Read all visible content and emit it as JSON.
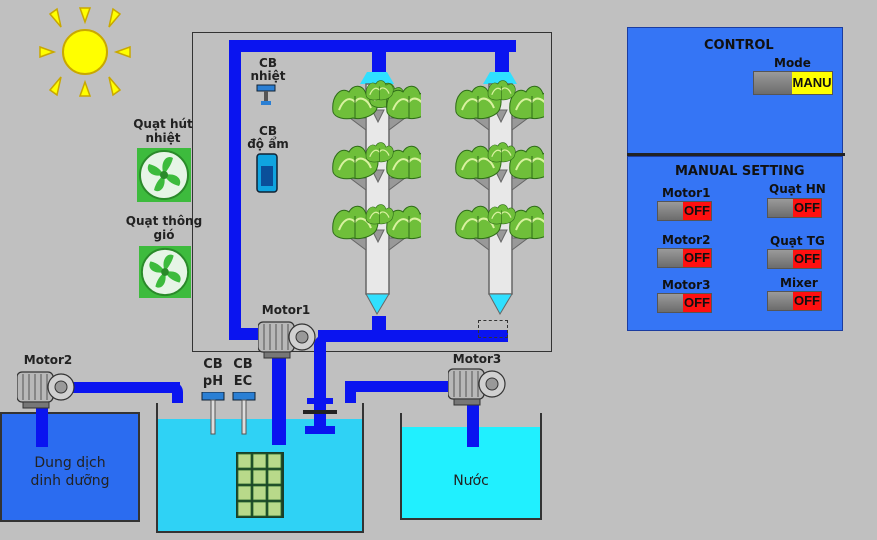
{
  "colors": {
    "background": "#c0c0c0",
    "pipe": "#0a14f0",
    "panel": "#3575f5",
    "off_state": "#ff1010",
    "manual_state": "#ffff00",
    "nutrient_tank": "#2b6cf0",
    "main_tank": "#2fd2f5",
    "water_tank": "#20f0ff",
    "fan": "#3dbb3d"
  },
  "sensors": {
    "temperature": "CB\nnhiệt",
    "humidity": "CB\nđộ ẩm",
    "ph": "CB\npH",
    "ec": "CB\nEC"
  },
  "fans": {
    "exhaust": "Quạt hút\nnhiệt",
    "ventilation": "Quạt thông\ngió"
  },
  "motors": {
    "motor1": "Motor1",
    "motor2": "Motor2",
    "motor3": "Motor3"
  },
  "tanks": {
    "nutrient": "Dung dịch\ndinh dưỡng",
    "water": "Nước"
  },
  "control": {
    "title": "CONTROL",
    "mode_label": "Mode",
    "mode_value": "MANU"
  },
  "manual": {
    "title": "MANUAL SETTING",
    "switches": [
      {
        "label": "Motor1",
        "state": "OFF"
      },
      {
        "label": "Quạt HN",
        "state": "OFF"
      },
      {
        "label": "Motor2",
        "state": "OFF"
      },
      {
        "label": "Quạt TG",
        "state": "OFF"
      },
      {
        "label": "Motor3",
        "state": "OFF"
      },
      {
        "label": "Mixer",
        "state": "OFF"
      }
    ]
  },
  "icons": [
    "sun-icon",
    "fan-icon",
    "lettuce-icon",
    "sensor-probe-icon",
    "motor-icon",
    "seedling-tray-icon"
  ]
}
